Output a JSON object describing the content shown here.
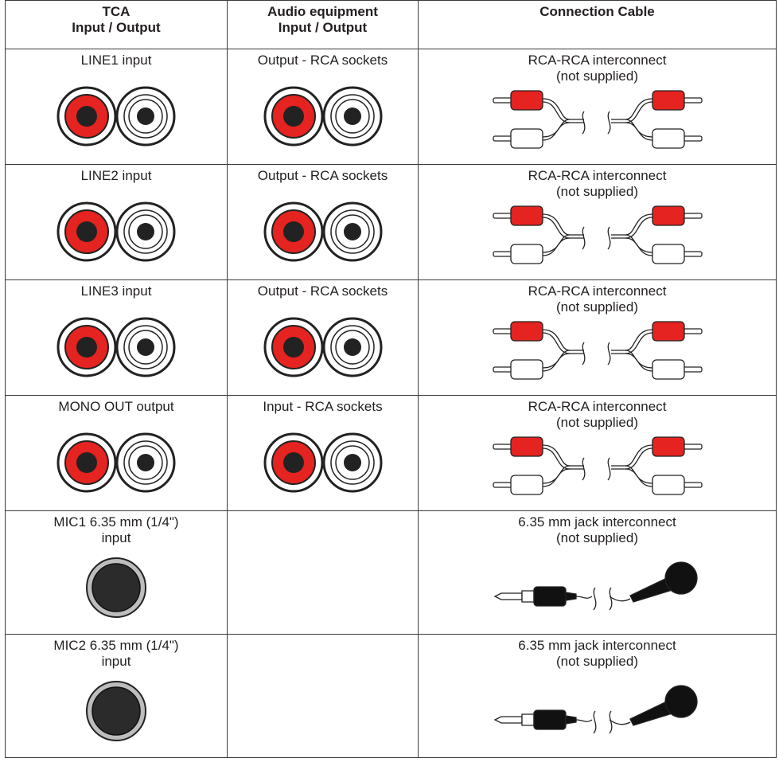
{
  "table": {
    "header": [
      [
        "TCA",
        "Input / Output"
      ],
      [
        "Audio equipment",
        "Input / Output"
      ],
      [
        "Connection Cable"
      ]
    ],
    "rows": [
      [
        [
          "LINE1 input"
        ],
        [
          "Output - RCA sockets"
        ],
        [
          "RCA-RCA interconnect",
          "(not supplied)"
        ]
      ],
      [
        [
          "LINE2 input"
        ],
        [
          "Output - RCA sockets"
        ],
        [
          "RCA-RCA interconnect",
          "(not supplied)"
        ]
      ],
      [
        [
          "LINE3 input"
        ],
        [
          "Output - RCA sockets"
        ],
        [
          "RCA-RCA interconnect",
          "(not supplied)"
        ]
      ],
      [
        [
          "MONO OUT output"
        ],
        [
          "Input - RCA sockets"
        ],
        [
          "RCA-RCA interconnect",
          "(not supplied)"
        ]
      ],
      [
        [
          "MIC1 6.35 mm (1/4\")",
          "input"
        ],
        [],
        [
          "6.35 mm jack interconnect",
          "(not supplied)"
        ]
      ],
      [
        [
          "MIC2 6.35 mm (1/4\")",
          "input"
        ],
        [],
        [
          "6.35 mm jack interconnect",
          "(not supplied)"
        ]
      ]
    ]
  }
}
